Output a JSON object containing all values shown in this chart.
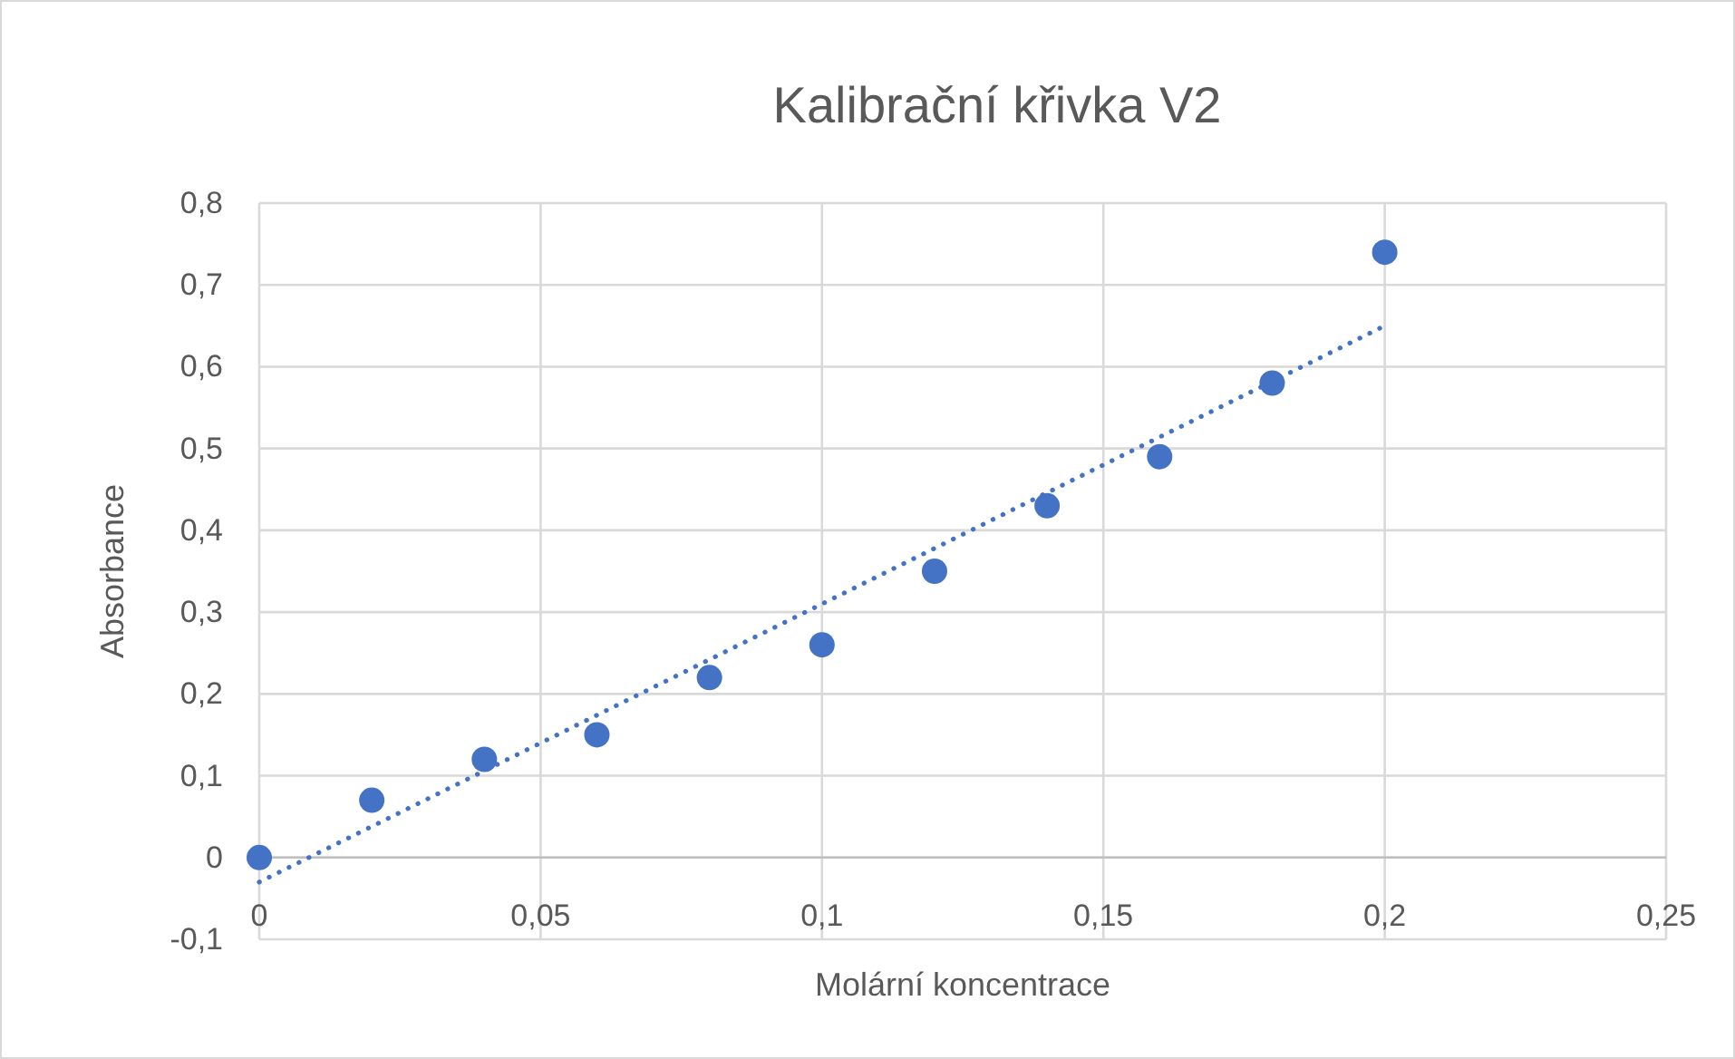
{
  "chart_data": {
    "type": "scatter",
    "title": "Kalibrační křivka V2",
    "xlabel": "Molární koncentrace",
    "ylabel": "Absorbance",
    "xlim": [
      0,
      0.25
    ],
    "ylim": [
      -0.1,
      0.8
    ],
    "xticks": [
      0,
      {
        "value": 0.05,
        "label": "0,05"
      },
      {
        "value": 0.1,
        "label": "0,1"
      },
      {
        "value": 0.15,
        "label": "0,15"
      },
      {
        "value": 0.2,
        "label": "0,2"
      },
      {
        "value": 0.25,
        "label": "0,25"
      }
    ],
    "yticks": [
      {
        "value": -0.1,
        "label": "-0,1"
      },
      0,
      {
        "value": 0.1,
        "label": "0,1"
      },
      {
        "value": 0.2,
        "label": "0,2"
      },
      {
        "value": 0.3,
        "label": "0,3"
      },
      {
        "value": 0.4,
        "label": "0,4"
      },
      {
        "value": 0.5,
        "label": "0,5"
      },
      {
        "value": 0.6,
        "label": "0,6"
      },
      {
        "value": 0.7,
        "label": "0,7"
      },
      {
        "value": 0.8,
        "label": "0,8"
      }
    ],
    "grid": true,
    "marker": "circle",
    "series": [
      {
        "color": "#4472c4",
        "x": [
          0,
          0.02,
          0.04,
          0.06,
          0.08,
          0.1,
          0.12,
          0.14,
          0.16,
          0.18,
          0.2
        ],
        "values": [
          0,
          0.07,
          0.12,
          0.15,
          0.22,
          0.26,
          0.35,
          0.43,
          0.49,
          0.58,
          0.74
        ]
      },
      {
        "type": "line",
        "color": "#4472c4",
        "line_style": "dotted",
        "marker": "none",
        "x": [
          0,
          0.2
        ],
        "values": [
          -0.03,
          0.65
        ]
      }
    ]
  }
}
